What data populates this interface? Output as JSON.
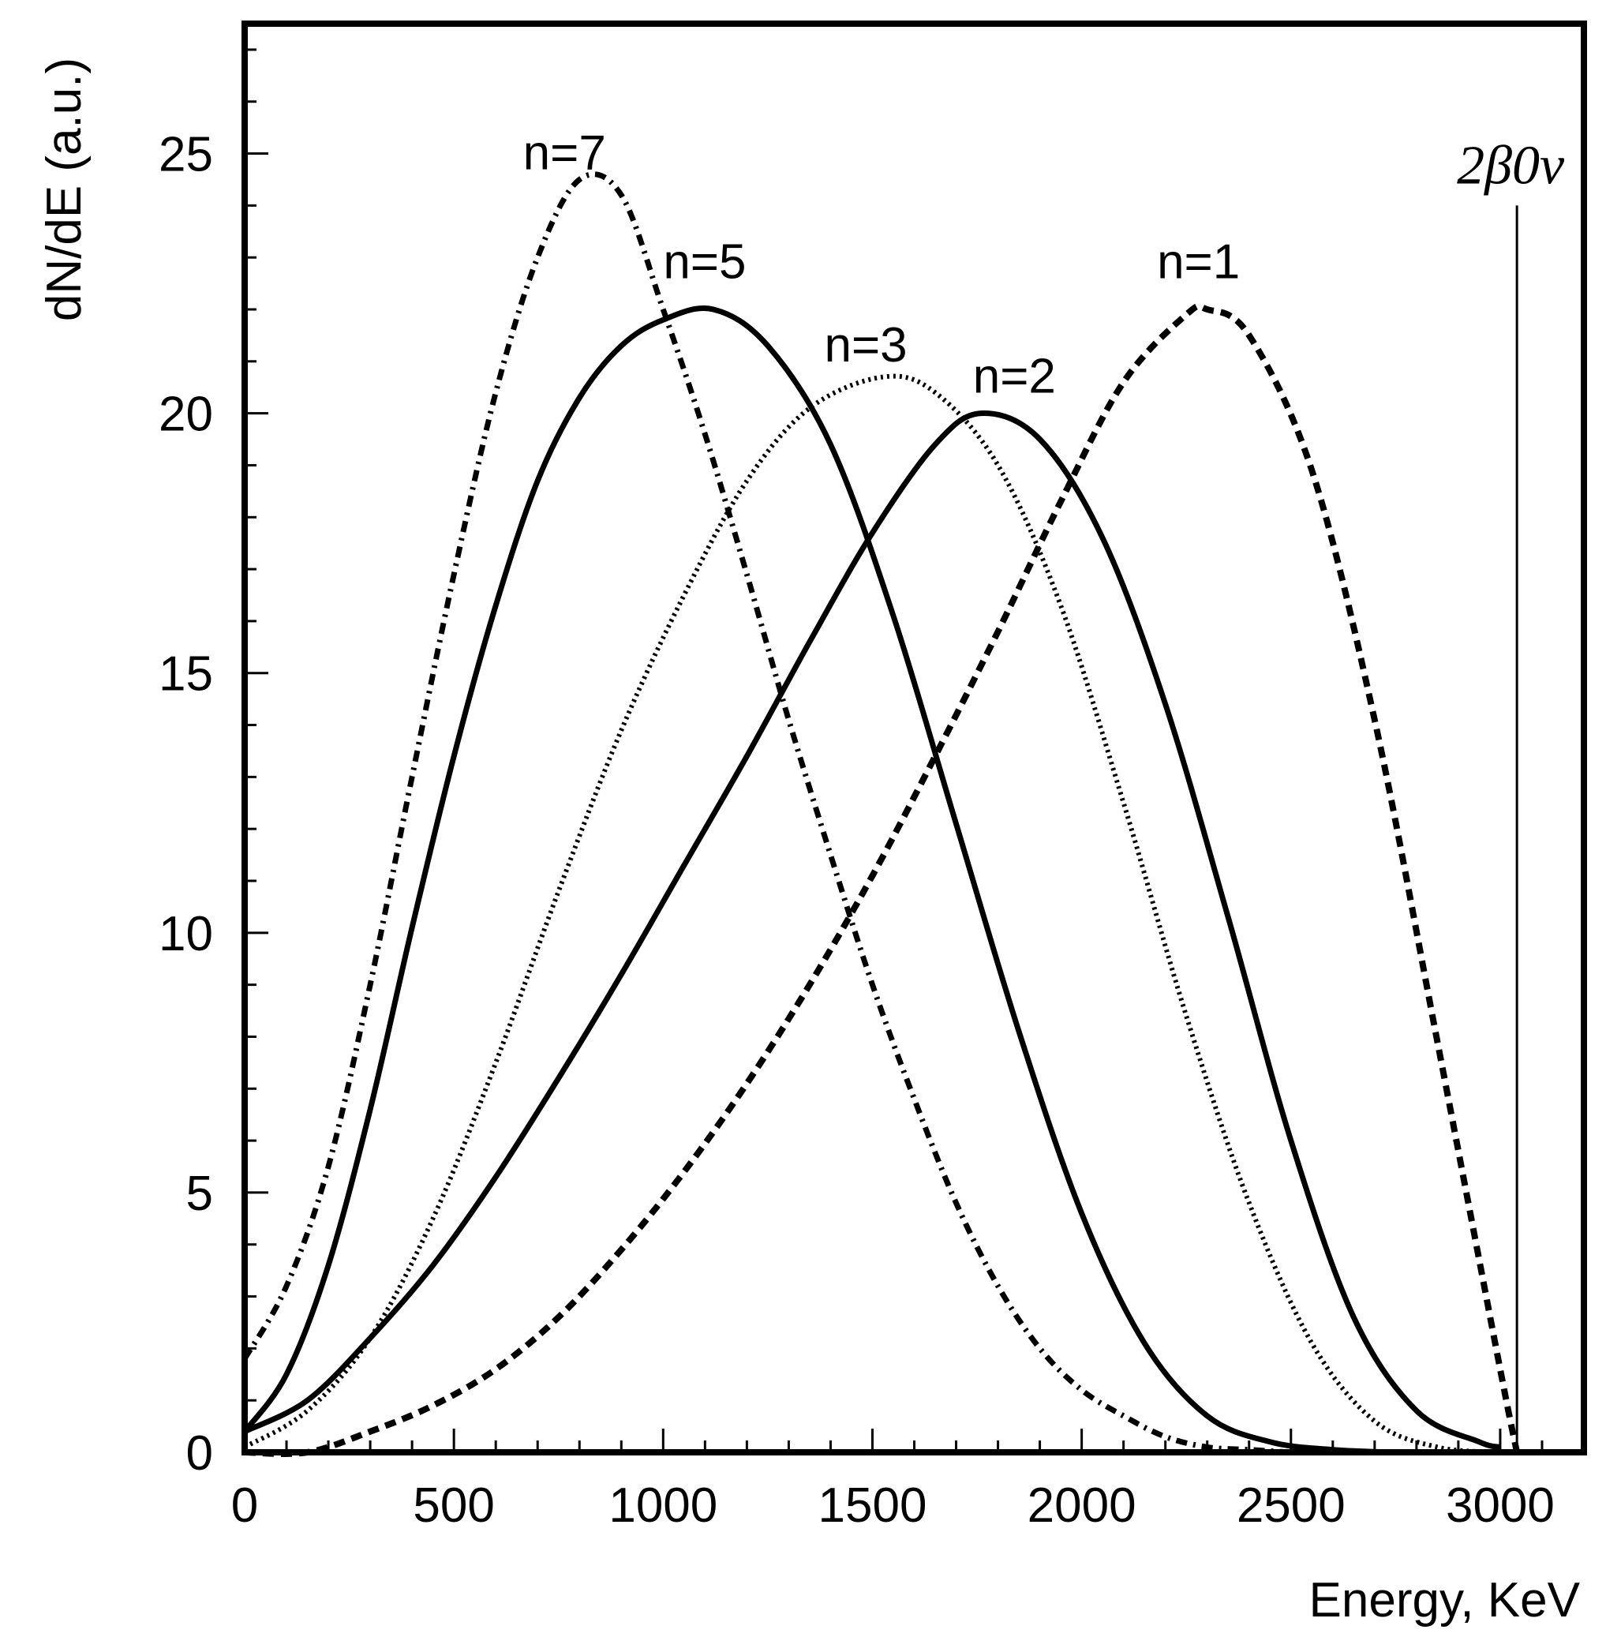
{
  "chart_data": {
    "type": "line",
    "title": "",
    "xlabel": "Energy, KeV",
    "ylabel": "dN/dE (a.u.)",
    "xlim": [
      0,
      3200
    ],
    "ylim": [
      0,
      27.5
    ],
    "xticks": [
      0,
      500,
      1000,
      1500,
      2000,
      2500,
      3000
    ],
    "yticks": [
      0,
      5,
      10,
      15,
      20,
      25
    ],
    "grid": false,
    "legend": "none",
    "endpoint": {
      "label": "2β0ν",
      "x": 3040,
      "y_top": 24
    },
    "series": [
      {
        "name": "n=1",
        "style": "dashed",
        "label_at": [
          2180,
          22.6
        ],
        "x": [
          0,
          150,
          300,
          450,
          600,
          750,
          900,
          1050,
          1200,
          1350,
          1500,
          1650,
          1800,
          1950,
          2100,
          2250,
          2300,
          2400,
          2550,
          2700,
          2850,
          3000,
          3040
        ],
        "y": [
          0.0,
          0.0,
          0.4,
          0.9,
          1.6,
          2.6,
          3.9,
          5.4,
          7.1,
          9.0,
          11.1,
          13.4,
          15.8,
          18.3,
          20.6,
          21.9,
          22.0,
          21.5,
          18.9,
          14.1,
          7.9,
          1.6,
          0.0
        ]
      },
      {
        "name": "n=2",
        "style": "solid",
        "label_at": [
          1740,
          20.4
        ],
        "x": [
          0,
          150,
          300,
          450,
          600,
          750,
          900,
          1050,
          1200,
          1350,
          1500,
          1650,
          1760,
          1900,
          2050,
          2200,
          2350,
          2500,
          2650,
          2800,
          2950,
          3000
        ],
        "y": [
          0.4,
          1.0,
          2.2,
          3.6,
          5.3,
          7.2,
          9.2,
          11.3,
          13.4,
          15.6,
          17.7,
          19.4,
          20.0,
          19.5,
          17.6,
          14.4,
          10.3,
          6.0,
          2.6,
          0.8,
          0.2,
          0.1
        ]
      },
      {
        "name": "n=3",
        "style": "dotted",
        "label_at": [
          1385,
          21.0
        ],
        "x": [
          0,
          150,
          300,
          450,
          600,
          750,
          900,
          1050,
          1200,
          1350,
          1525,
          1650,
          1800,
          1950,
          2100,
          2250,
          2400,
          2550,
          2700,
          2850,
          3000
        ],
        "y": [
          0.1,
          0.8,
          2.2,
          4.5,
          7.5,
          10.8,
          13.9,
          16.5,
          18.7,
          20.1,
          20.7,
          20.4,
          19.0,
          16.3,
          12.5,
          8.4,
          4.8,
          2.1,
          0.6,
          0.1,
          0.0
        ]
      },
      {
        "name": "n=5",
        "style": "solid",
        "label_at": [
          1000,
          22.6
        ],
        "x": [
          0,
          100,
          200,
          300,
          400,
          500,
          600,
          700,
          800,
          900,
          1000,
          1120,
          1250,
          1400,
          1550,
          1700,
          1850,
          2000,
          2150,
          2300,
          2450,
          2600,
          2750
        ],
        "y": [
          0.4,
          1.5,
          3.6,
          6.6,
          10.1,
          13.4,
          16.3,
          18.7,
          20.3,
          21.3,
          21.8,
          22.0,
          21.3,
          19.4,
          16.1,
          12.1,
          8.1,
          4.6,
          2.1,
          0.7,
          0.2,
          0.05,
          0.0
        ]
      },
      {
        "name": "n=7",
        "style": "dash-dot",
        "label_at": [
          665,
          24.7
        ],
        "x": [
          0,
          100,
          200,
          300,
          400,
          500,
          600,
          700,
          800,
          900,
          1000,
          1100,
          1200,
          1300,
          1400,
          1500,
          1600,
          1700,
          1800,
          1900,
          2000,
          2100,
          2200,
          2300,
          2400,
          2500
        ],
        "y": [
          1.8,
          3.2,
          5.5,
          9.0,
          13.0,
          16.9,
          20.4,
          23.0,
          24.5,
          24.2,
          22.0,
          19.6,
          16.9,
          14.1,
          11.5,
          9.0,
          6.8,
          4.8,
          3.2,
          2.0,
          1.2,
          0.7,
          0.3,
          0.1,
          0.05,
          0.0
        ]
      }
    ]
  }
}
